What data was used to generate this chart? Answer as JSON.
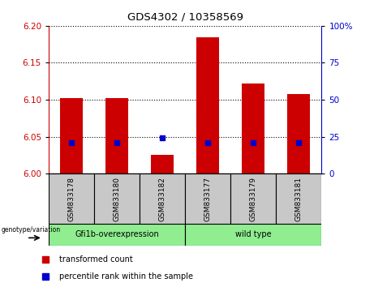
{
  "title": "GDS4302 / 10358569",
  "samples": [
    "GSM833178",
    "GSM833180",
    "GSM833182",
    "GSM833177",
    "GSM833179",
    "GSM833181"
  ],
  "red_values": [
    6.102,
    6.102,
    6.025,
    6.185,
    6.122,
    6.108
  ],
  "blue_values": [
    6.042,
    6.042,
    6.048,
    6.042,
    6.042,
    6.042
  ],
  "ylim_left": [
    6.0,
    6.2
  ],
  "ylim_right": [
    0,
    100
  ],
  "yticks_left": [
    6.0,
    6.05,
    6.1,
    6.15,
    6.2
  ],
  "yticks_right": [
    0,
    25,
    50,
    75,
    100
  ],
  "group1_label": "Gfi1b-overexpression",
  "group2_label": "wild type",
  "bar_bottom": 6.0,
  "red_color": "#CC0000",
  "blue_color": "#0000CC",
  "left_axis_color": "#CC0000",
  "right_axis_color": "#0000CC",
  "label_box_color": "#C8C8C8",
  "group_box_color": "#90EE90",
  "legend_red": "transformed count",
  "legend_blue": "percentile rank within the sample",
  "genotype_label": "genotype/variation"
}
